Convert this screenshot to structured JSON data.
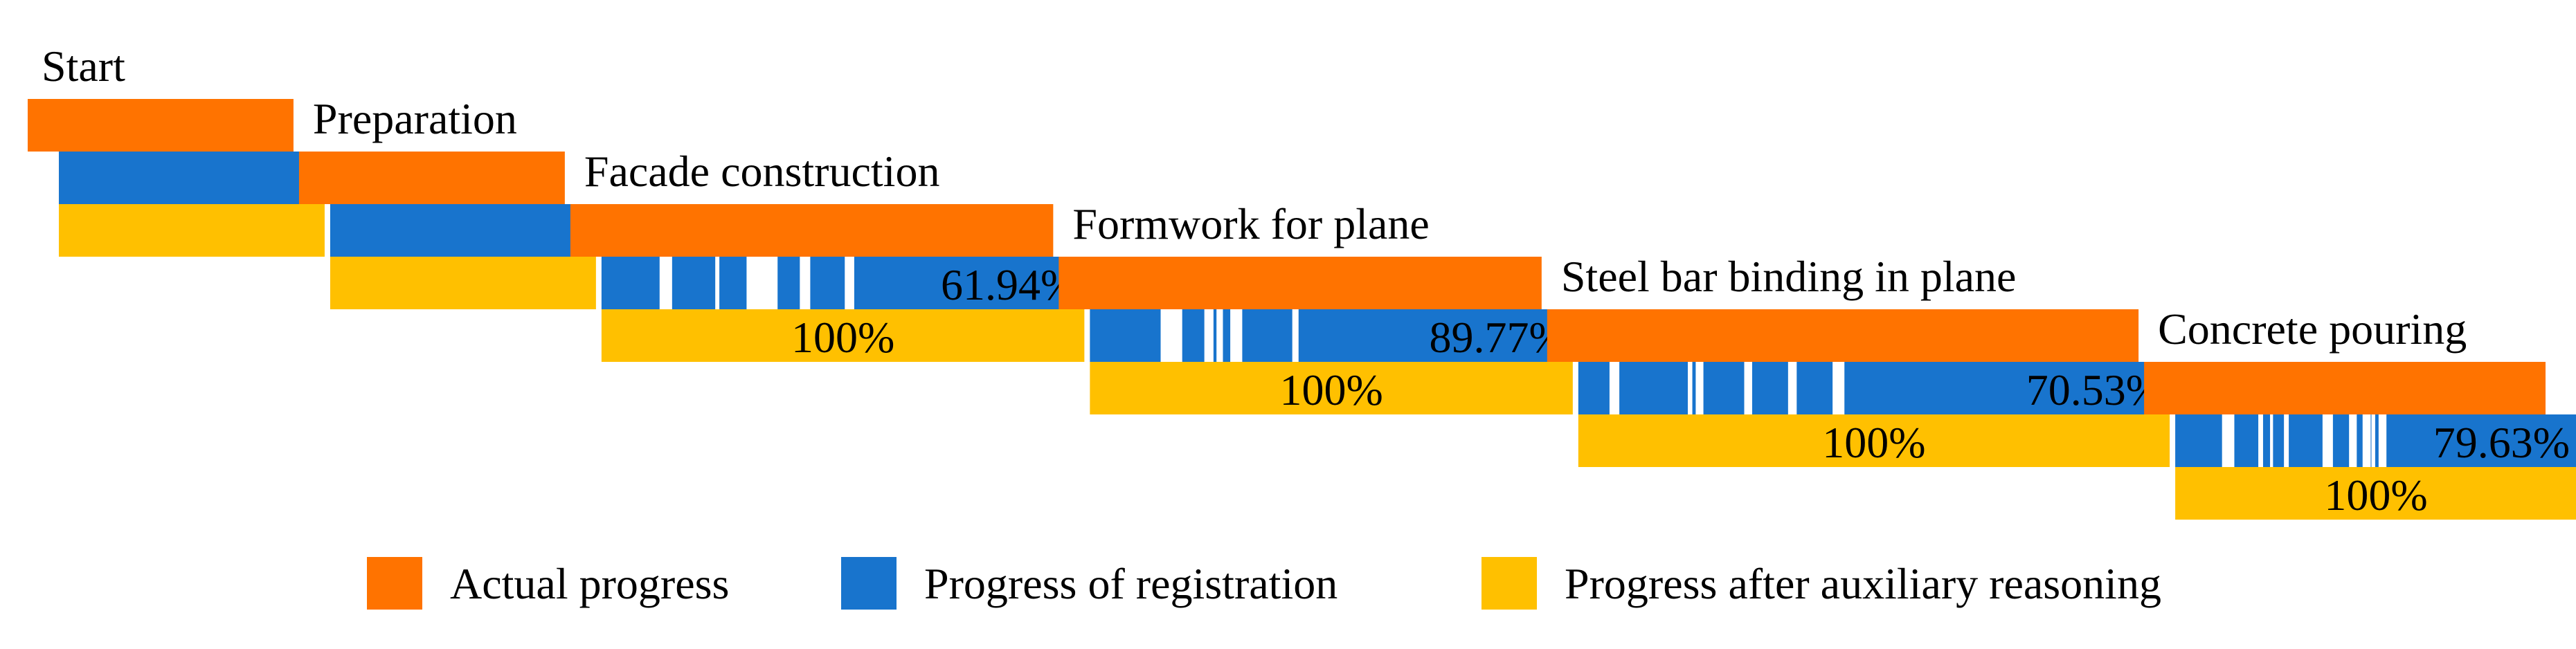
{
  "chart_data": {
    "type": "gantt",
    "title": "",
    "xlabel": "",
    "ylabel": "",
    "grid": false,
    "legend_position": "bottom",
    "colors": {
      "actual": "#FF7300",
      "registration": "#1874CD",
      "auxiliary": "#FFC000",
      "gap": "#FFFFFF"
    },
    "series": [
      {
        "key": "actual",
        "name": "Actual progress"
      },
      {
        "key": "registration",
        "name": "Progress of registration"
      },
      {
        "key": "auxiliary",
        "name": "Progress after auxiliary reasoning"
      }
    ],
    "tasks": [
      {
        "name": "Start",
        "actual": [
          0,
          100
        ],
        "registration": [
          0,
          100
        ],
        "registration_percent": null,
        "auxiliary": [
          0,
          100
        ],
        "auxiliary_percent": null
      },
      {
        "name": "Preparation",
        "actual": [
          100,
          200
        ],
        "registration": [
          100,
          200
        ],
        "registration_percent": null,
        "auxiliary": [
          100,
          200
        ],
        "auxiliary_percent": null
      },
      {
        "name": "Facade construction",
        "actual": [
          200,
          380
        ],
        "registration": [
          200,
          380
        ],
        "registration_percent": "61.94%",
        "auxiliary": [
          200,
          380
        ],
        "auxiliary_percent": "100%"
      },
      {
        "name": "Formwork for plane",
        "actual": [
          380,
          560
        ],
        "registration": [
          380,
          560
        ],
        "registration_percent": "89.77%",
        "auxiliary": [
          380,
          560
        ],
        "auxiliary_percent": "100%"
      },
      {
        "name": "Steel bar binding in plane",
        "actual": [
          560,
          780
        ],
        "registration": [
          560,
          780
        ],
        "registration_percent": "70.53%",
        "auxiliary": [
          560,
          780
        ],
        "auxiliary_percent": "100%"
      },
      {
        "name": "Concrete pouring",
        "actual": [
          780,
          930
        ],
        "registration": [
          780,
          930
        ],
        "registration_percent": "79.63%",
        "auxiliary": [
          780,
          930
        ],
        "auxiliary_percent": "100%"
      }
    ]
  }
}
